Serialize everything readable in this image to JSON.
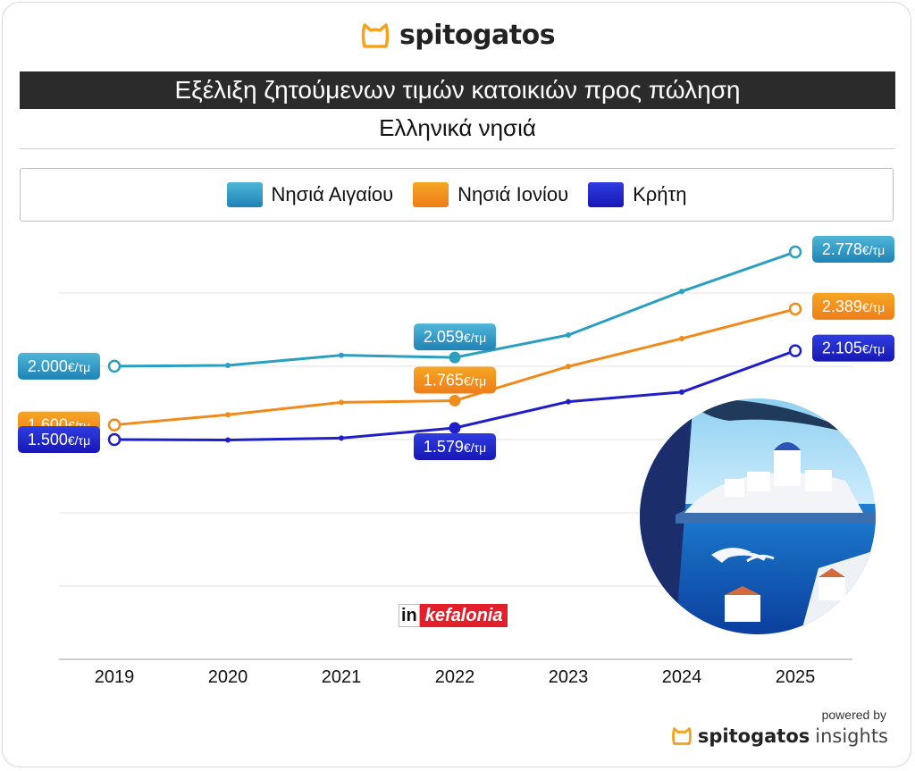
{
  "brand": {
    "name": "spitogatos",
    "accent": "#f5a21c"
  },
  "header": {
    "title": "Εξέλιξη ζητούμενων τιμών κατοικιών προς πώληση",
    "subtitle": "Ελληνικά νησιά"
  },
  "chart_data": {
    "type": "line",
    "title": "Εξέλιξη ζητούμενων τιμών κατοικιών προς πώληση",
    "subtitle": "Ελληνικά νησιά",
    "xlabel": "",
    "ylabel": "",
    "categories": [
      "2019",
      "2020",
      "2021",
      "2022",
      "2023",
      "2024",
      "2025"
    ],
    "ylim": [
      0,
      3000
    ],
    "grid": true,
    "legend_position": "top",
    "unit_suffix": "€/τμ",
    "series": [
      {
        "name": "Νησιά Αιγαίου",
        "color": "#2a9fc0",
        "gradient": [
          "#4fb6d8",
          "#1f83b5"
        ],
        "values": [
          2000,
          2005,
          2074,
          2059,
          2212,
          2509,
          2778
        ],
        "labels": [
          {
            "index": 0,
            "text": "2.000",
            "unit": "€/τμ"
          },
          {
            "index": 3,
            "text": "2.059",
            "unit": "€/τμ"
          },
          {
            "index": 6,
            "text": "2.778",
            "unit": "€/τμ"
          }
        ]
      },
      {
        "name": "Νησιά Ιονίου",
        "color": "#f08a1a",
        "gradient": [
          "#f5a623",
          "#ee7e1a"
        ],
        "values": [
          1600,
          1669,
          1753,
          1765,
          1998,
          2188,
          2389
        ],
        "labels": [
          {
            "index": 0,
            "text": "1.600",
            "unit": "€/τμ"
          },
          {
            "index": 3,
            "text": "1.765",
            "unit": "€/τμ"
          },
          {
            "index": 6,
            "text": "2.389",
            "unit": "€/τμ"
          }
        ]
      },
      {
        "name": "Κρήτη",
        "color": "#1f1ec8",
        "gradient": [
          "#2f3de0",
          "#1717b5"
        ],
        "values": [
          1500,
          1497,
          1510,
          1579,
          1758,
          1823,
          2105
        ],
        "labels": [
          {
            "index": 0,
            "text": "1.500",
            "unit": "€/τμ"
          },
          {
            "index": 3,
            "text": "1.579",
            "unit": "€/τμ"
          },
          {
            "index": 6,
            "text": "2.105",
            "unit": "€/τμ"
          }
        ]
      }
    ]
  },
  "source_logo": {
    "prefix": "in",
    "name": "kefalonia"
  },
  "footer": {
    "powered_by": "powered by",
    "brand": "spitogatos",
    "suffix": "insights"
  }
}
